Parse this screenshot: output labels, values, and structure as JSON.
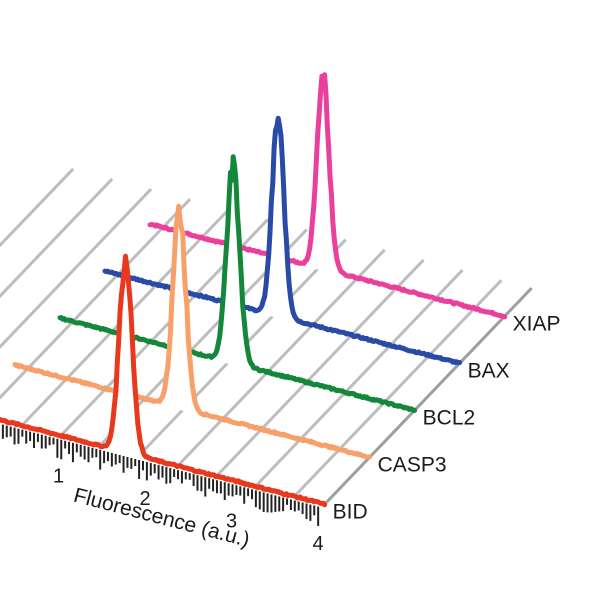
{
  "chart_data": {
    "type": "line",
    "subtype": "3d-waterfall-histogram",
    "title": "",
    "xlabel": "Fluorescence (a.u.)",
    "ylabel": "",
    "x_ticks": [
      1,
      2,
      3,
      4
    ],
    "xlim": [
      0.0,
      4.1
    ],
    "grid": true,
    "legend": "none",
    "series": [
      {
        "name": "BID",
        "color": "#e8391f",
        "peak_x": 1.8,
        "peak_height": 0.7,
        "spread": 0.075
      },
      {
        "name": "CASP3",
        "color": "#f7a06a",
        "peak_x": 1.9,
        "peak_height": 0.7,
        "spread": 0.075
      },
      {
        "name": "BCL2",
        "color": "#13883b",
        "peak_x": 2.0,
        "peak_height": 0.7,
        "spread": 0.075
      },
      {
        "name": "BAX",
        "color": "#2a4aa8",
        "peak_x": 2.0,
        "peak_height": 0.7,
        "spread": 0.07
      },
      {
        "name": "XIAP",
        "color": "#ea3f9d",
        "peak_x": 2.0,
        "peak_height": 0.7,
        "spread": 0.07
      }
    ]
  }
}
